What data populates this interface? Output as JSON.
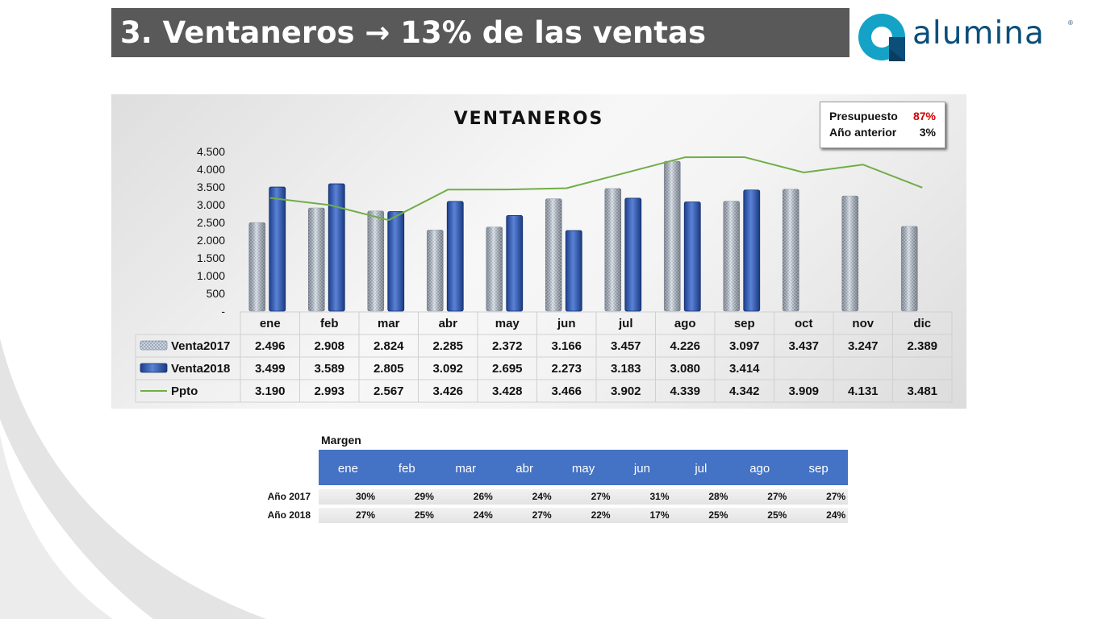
{
  "slide": {
    "title": "3. Ventaneros → 13% de las ventas",
    "logo_text": "alumina",
    "logo_reg": "®"
  },
  "kpi": {
    "presupuesto_label": "Presupuesto",
    "presupuesto_value": "87%",
    "anterior_label": "Año anterior",
    "anterior_value": "3%"
  },
  "chart_data": {
    "type": "bar",
    "title": "VENTANEROS",
    "xlabel": "",
    "ylabel": "",
    "categories": [
      "ene",
      "feb",
      "mar",
      "abr",
      "may",
      "jun",
      "jul",
      "ago",
      "sep",
      "oct",
      "nov",
      "dic"
    ],
    "ylim": [
      0,
      4500
    ],
    "y_ticks": [
      "-",
      "500",
      "1.000",
      "1.500",
      "2.000",
      "2.500",
      "3.000",
      "3.500",
      "4.000",
      "4.500"
    ],
    "y_tick_values": [
      0,
      500,
      1000,
      1500,
      2000,
      2500,
      3000,
      3500,
      4000,
      4500
    ],
    "series": [
      {
        "name": "Venta2017",
        "kind": "bar",
        "color": "#b4c2d6",
        "values": [
          2496,
          2908,
          2824,
          2285,
          2372,
          3166,
          3457,
          4226,
          3097,
          3437,
          3247,
          2389
        ],
        "labels": [
          "2.496",
          "2.908",
          "2.824",
          "2.285",
          "2.372",
          "3.166",
          "3.457",
          "4.226",
          "3.097",
          "3.437",
          "3.247",
          "2.389"
        ]
      },
      {
        "name": "Venta2018",
        "kind": "bar",
        "color": "#2f55a8",
        "values": [
          3499,
          3589,
          2805,
          3092,
          2695,
          2273,
          3183,
          3080,
          3414,
          null,
          null,
          null
        ],
        "labels": [
          "3.499",
          "3.589",
          "2.805",
          "3.092",
          "2.695",
          "2.273",
          "3.183",
          "3.080",
          "3.414",
          "",
          "",
          ""
        ]
      },
      {
        "name": "Ppto",
        "kind": "line",
        "color": "#70ad47",
        "values": [
          3190,
          2993,
          2567,
          3426,
          3428,
          3466,
          3902,
          4339,
          4342,
          3909,
          4131,
          3481
        ],
        "labels": [
          "3.190",
          "2.993",
          "2.567",
          "3.426",
          "3.428",
          "3.466",
          "3.902",
          "4.339",
          "4.342",
          "3.909",
          "4.131",
          "3.481"
        ]
      }
    ],
    "legend": "data table below chart",
    "grid": false
  },
  "margen": {
    "title": "Margen",
    "months": [
      "ene",
      "feb",
      "mar",
      "abr",
      "may",
      "jun",
      "jul",
      "ago",
      "sep"
    ],
    "rows": [
      {
        "label": "Año 2017",
        "values": [
          "30%",
          "29%",
          "26%",
          "24%",
          "27%",
          "31%",
          "28%",
          "27%",
          "27%"
        ]
      },
      {
        "label": "Año 2018",
        "values": [
          "27%",
          "25%",
          "24%",
          "27%",
          "22%",
          "17%",
          "25%",
          "25%",
          "24%"
        ]
      }
    ]
  }
}
